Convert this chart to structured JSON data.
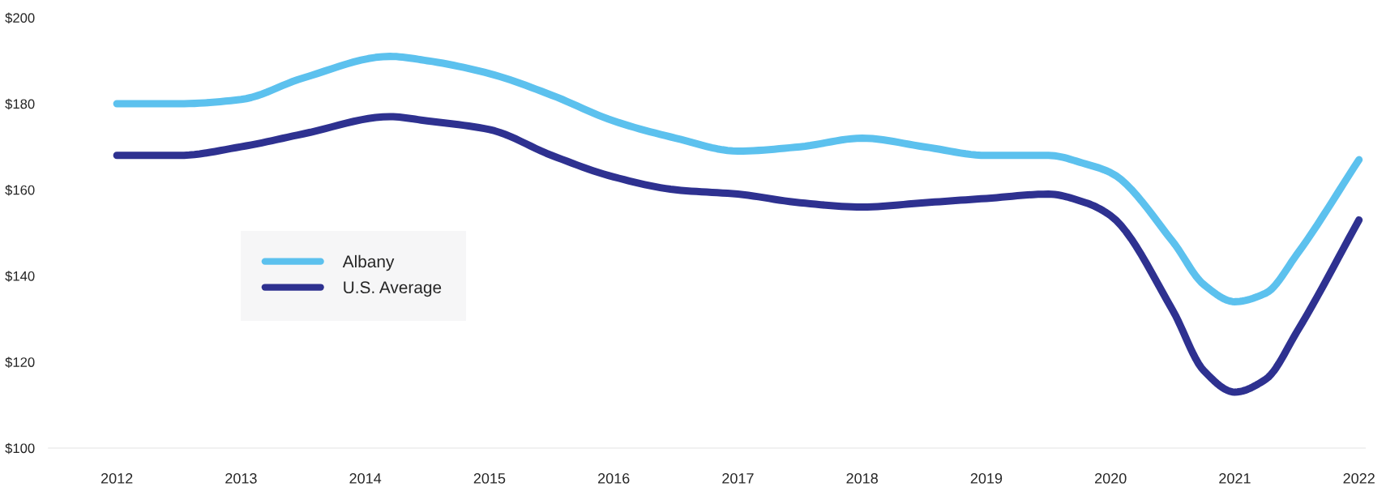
{
  "chart_data": {
    "type": "line",
    "x": [
      2012,
      2012.5,
      2013,
      2013.5,
      2014.2,
      2014.5,
      2015,
      2015.5,
      2016,
      2016.5,
      2017,
      2017.5,
      2018,
      2018.5,
      2019,
      2019.5,
      2019.8,
      2020,
      2020.5,
      2020.75,
      2021,
      2021.25,
      2021.5,
      2022
    ],
    "series": [
      {
        "name": "Albany",
        "color": "#5cc1ee",
        "values": [
          180,
          180,
          181,
          186,
          191,
          190,
          187,
          182,
          176,
          172,
          169,
          170,
          172,
          170,
          168,
          168,
          166,
          164,
          148,
          138,
          134,
          136,
          145,
          167
        ]
      },
      {
        "name": "U.S. Average",
        "color": "#2e3190",
        "values": [
          168,
          168,
          170,
          173,
          177,
          176,
          174,
          168,
          163,
          160,
          159,
          157,
          156,
          157,
          158,
          159,
          157,
          154,
          132,
          118,
          113,
          116,
          127,
          153
        ]
      }
    ],
    "xlim": [
      2011.45,
      2022.05
    ],
    "xticks": [
      2012,
      2013,
      2014,
      2015,
      2016,
      2017,
      2018,
      2019,
      2020,
      2021,
      2022
    ],
    "ylim": [
      100,
      200
    ],
    "yticks": [
      {
        "value": 100,
        "label": "$100"
      },
      {
        "value": 120,
        "label": "$120"
      },
      {
        "value": 140,
        "label": "$140"
      },
      {
        "value": 160,
        "label": "$160"
      },
      {
        "value": 180,
        "label": "$180"
      },
      {
        "value": 200,
        "label": "$200"
      }
    ],
    "grid": false,
    "legend": "center left",
    "marker": "none",
    "line_style": "solid"
  }
}
